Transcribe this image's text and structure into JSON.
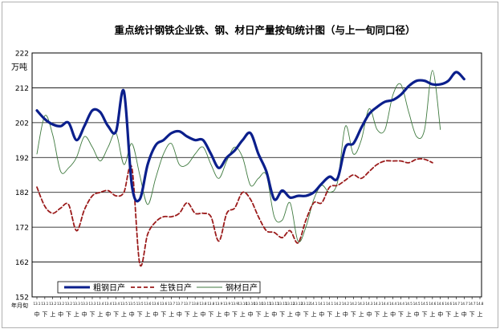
{
  "chart_data": {
    "type": "line",
    "title": "重点统计钢铁企业铁、钢、材日产量按旬统计图（与上一旬同口径）",
    "ylabel": "万吨",
    "xlabel_corner": "年月旬",
    "ylim": [
      152,
      222
    ],
    "yticks": [
      152,
      162,
      172,
      182,
      192,
      202,
      212,
      222
    ],
    "x_tick_labels": [
      "中",
      "下",
      "上",
      "中",
      "下",
      "上",
      "中",
      "下",
      "上",
      "中",
      "下",
      "上",
      "中",
      "下",
      "上",
      "中",
      "下",
      "上",
      "中",
      "下",
      "上",
      "中",
      "下",
      "上",
      "中",
      "下",
      "上",
      "中",
      "下",
      "上",
      "中",
      "下",
      "上",
      "中",
      "下",
      "上",
      "中",
      "下",
      "上",
      "中",
      "下",
      "上",
      "中",
      "下",
      "上",
      "中",
      "下",
      "上",
      "中",
      "下",
      "上",
      "中",
      "下",
      "上",
      "中",
      "下",
      "上"
    ],
    "x_date_labels": [
      "13.1",
      "13.1",
      "13.2",
      "13.2",
      "13.2",
      "13.3",
      "13.3",
      "13.3",
      "13.4",
      "13.4",
      "13.4",
      "13.5",
      "13.5",
      "13.5",
      "13.6",
      "13.6",
      "13.6",
      "13.7",
      "13.7",
      "13.7",
      "13.8",
      "13.8",
      "13.8",
      "13.9",
      "13.9",
      "13.9",
      "13.10",
      "13.10",
      "13.10",
      "13.11",
      "13.11",
      "13.11",
      "13.12",
      "13.12",
      "13.12",
      "14.1",
      "14.1",
      "14.1",
      "14.2",
      "14.2",
      "14.2",
      "14.3",
      "14.3",
      "14.3",
      "14.4",
      "14.4",
      "14.4",
      "14.5",
      "14.5",
      "14.5",
      "14.6",
      "14.6",
      "14.6",
      "14.7",
      "14.7",
      "14.7",
      "14.8"
    ],
    "grid": true,
    "legend_position": "bottom-left",
    "series": [
      {
        "name": "粗钢日产",
        "color": "#0b1f8c",
        "style": "solid-thick",
        "values": [
          205.5,
          203,
          201.5,
          201,
          202,
          197,
          201,
          205.5,
          205,
          201,
          199.5,
          211,
          184,
          180,
          190,
          195.5,
          197,
          199,
          199.5,
          198,
          197,
          197,
          193,
          189,
          192,
          194,
          197,
          199,
          193,
          188,
          180,
          182.5,
          180.5,
          181,
          181,
          182,
          184.5,
          186.5,
          186,
          195,
          196,
          200.5,
          204.5,
          206.5,
          208,
          208.5,
          210,
          212.5,
          214,
          214,
          213,
          213,
          214,
          216.5,
          214.5
        ]
      },
      {
        "name": "生铁日产",
        "color": "#9b1b1b",
        "style": "dashed",
        "values": [
          183.5,
          178,
          176,
          177.5,
          178.5,
          171,
          177,
          181,
          182,
          182.5,
          181,
          182,
          189,
          161.5,
          170,
          173.5,
          175,
          175,
          176,
          179,
          176,
          176,
          175,
          168,
          176,
          177.5,
          182,
          180,
          175,
          171,
          170.5,
          169,
          171,
          167.5,
          174,
          179,
          179,
          183.5,
          184,
          185.5,
          187,
          186,
          188,
          190,
          191,
          191,
          191,
          190.5,
          191.5,
          191.5,
          190.5
        ]
      },
      {
        "name": "钢材日产",
        "color": "#3f7a3f",
        "style": "solid-thin",
        "values": [
          193,
          204,
          198.5,
          188,
          189,
          192,
          198,
          195,
          191,
          195,
          199,
          190,
          196,
          187,
          178.5,
          186,
          193,
          196,
          190,
          190,
          193,
          195,
          190,
          186,
          191,
          195,
          192,
          184,
          186,
          187,
          175,
          174,
          179,
          168,
          172,
          180,
          184,
          182,
          185,
          201,
          193,
          197,
          206,
          200,
          200,
          210,
          213,
          205,
          198,
          200,
          217,
          200
        ]
      }
    ]
  }
}
